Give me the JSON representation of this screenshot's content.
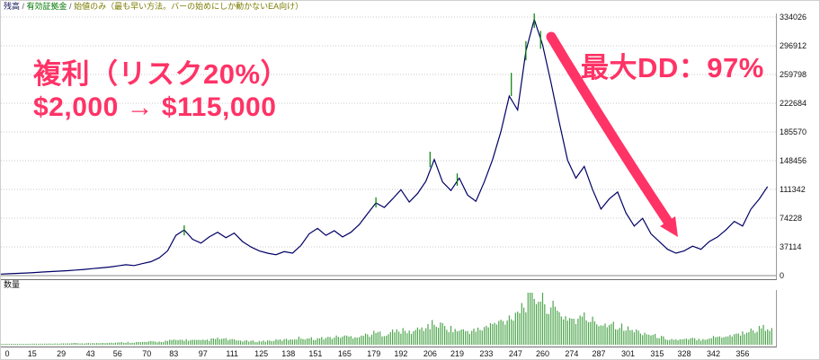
{
  "header": {
    "balance_label": "残高",
    "sep1": " / ",
    "equity_label": "有効証拠金",
    "sep2": " / ",
    "mode_label": "始値のみ（最も早い方法。バーの始めにしか動かないEA向け）"
  },
  "volume_pane": {
    "label": "数量"
  },
  "annotations": {
    "line1": "複利（リスク20%）",
    "line2": "$2,000 → $115,000",
    "max_dd": "最大DD：97%"
  },
  "colors": {
    "accent": "#ff3366",
    "balance_line": "#000066",
    "equity_line": "#008000",
    "volume_bar": "#4ca64c",
    "grid": "#c8c8c8",
    "axis_text": "#111111"
  },
  "chart_data": {
    "type": "line",
    "title": "",
    "xlabel": "",
    "ylabel": "",
    "legend_position": "top-left",
    "grid": "horizontal-dotted",
    "x_axis_max": 372,
    "y_axis_max": 334026,
    "y_ticks": [
      334026,
      296912,
      259798,
      222684,
      185570,
      148456,
      111342,
      74228,
      37114,
      0
    ],
    "x_ticks": [
      0,
      15,
      29,
      43,
      56,
      70,
      83,
      97,
      111,
      125,
      138,
      151,
      165,
      179,
      192,
      206,
      219,
      233,
      247,
      260,
      274,
      287,
      301,
      315,
      328,
      342,
      356
    ],
    "series": [
      {
        "name": "残高",
        "x_start": 0,
        "x_step": 4,
        "values": [
          2000,
          2400,
          2900,
          3400,
          4000,
          4600,
          5200,
          5800,
          6400,
          7200,
          8000,
          9000,
          10000,
          11000,
          12500,
          14000,
          13000,
          15500,
          18000,
          23000,
          32000,
          52000,
          59000,
          47000,
          42000,
          50000,
          56000,
          49000,
          55000,
          44000,
          37000,
          32000,
          29000,
          27000,
          31000,
          29000,
          39000,
          54000,
          61000,
          52000,
          58000,
          50000,
          56000,
          66000,
          80000,
          94000,
          88000,
          99000,
          111000,
          95000,
          106000,
          122000,
          150000,
          121000,
          110000,
          126000,
          104000,
          96000,
          121000,
          150000,
          186000,
          232000,
          214000,
          290000,
          331000,
          298000,
          250000,
          198000,
          149000,
          126000,
          141000,
          111000,
          86000,
          99000,
          108000,
          81000,
          64000,
          74000,
          54000,
          44000,
          34000,
          29000,
          32000,
          38000,
          34000,
          44000,
          50000,
          59000,
          70000,
          64000,
          86000,
          99000,
          115000
        ]
      }
    ],
    "equity_spikes": [
      {
        "x": 88,
        "from": 52000,
        "to": 65000
      },
      {
        "x": 180,
        "from": 88000,
        "to": 101000
      },
      {
        "x": 206,
        "from": 140000,
        "to": 160000
      },
      {
        "x": 219,
        "from": 116000,
        "to": 132000
      },
      {
        "x": 245,
        "from": 232000,
        "to": 262000
      },
      {
        "x": 252,
        "from": 278000,
        "to": 303000
      },
      {
        "x": 256,
        "from": 320000,
        "to": 342000
      },
      {
        "x": 259,
        "from": 293000,
        "to": 316000
      }
    ],
    "volume": {
      "name": "数量",
      "x_start": 0,
      "x_step": 4,
      "values": [
        1,
        1,
        1,
        1,
        2,
        2,
        2,
        2,
        3,
        3,
        3,
        3,
        4,
        4,
        4,
        5,
        5,
        5,
        6,
        6,
        8,
        9,
        10,
        9,
        8,
        10,
        12,
        11,
        9,
        8,
        7,
        7,
        8,
        9,
        10,
        12,
        14,
        13,
        12,
        14,
        15,
        17,
        16,
        18,
        20,
        24,
        22,
        26,
        28,
        25,
        30,
        36,
        42,
        38,
        32,
        28,
        28,
        28,
        34,
        40,
        46,
        55,
        70,
        85,
        100,
        90,
        75,
        62,
        55,
        50,
        55,
        48,
        42,
        45,
        40,
        32,
        28,
        25,
        20,
        16,
        12,
        10,
        10,
        12,
        11,
        14,
        16,
        18,
        20,
        24,
        28,
        32,
        36
      ]
    }
  }
}
